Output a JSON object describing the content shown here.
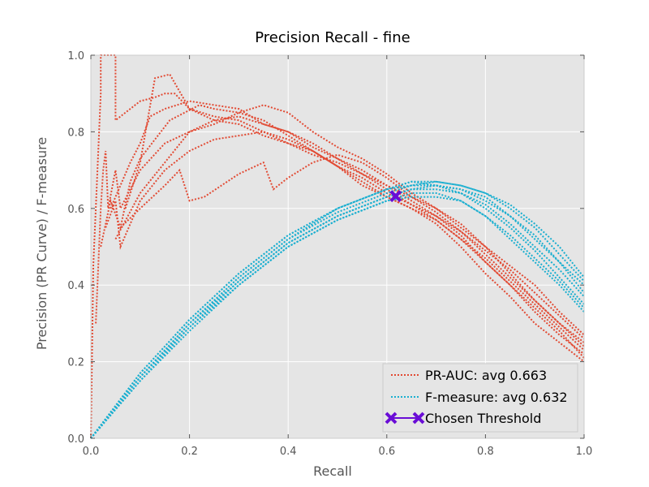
{
  "chart_data": {
    "type": "line",
    "title": "Precision Recall - fine",
    "xlabel": "Recall",
    "ylabel": "Precision (PR Curve) / F-measure",
    "xlim": [
      0.0,
      1.0
    ],
    "ylim": [
      0.0,
      1.0
    ],
    "xticks": [
      "0.0",
      "0.2",
      "0.4",
      "0.6",
      "0.8",
      "1.0"
    ],
    "yticks": [
      "0.0",
      "0.2",
      "0.4",
      "0.6",
      "0.8",
      "1.0"
    ],
    "grid": true,
    "legend_position": "lower-right",
    "colors": {
      "pr": "#e24a33",
      "f": "#1aafd0",
      "threshold": "#6a0dd6",
      "background": "#e5e5e5",
      "grid": "#ffffff"
    },
    "legend": [
      {
        "key": "pr",
        "label": "PR-AUC: avg 0.663",
        "style": "dotted"
      },
      {
        "key": "f",
        "label": "F-measure: avg 0.632",
        "style": "dotted"
      },
      {
        "key": "threshold",
        "label": "Chosen Threshold",
        "style": "marker-x"
      }
    ],
    "pr_curves": [
      [
        [
          0.0,
          0.0
        ],
        [
          0.005,
          0.45
        ],
        [
          0.01,
          0.6
        ],
        [
          0.02,
          0.9
        ],
        [
          0.02,
          1.0
        ],
        [
          0.05,
          1.0
        ],
        [
          0.05,
          0.83
        ],
        [
          0.08,
          0.86
        ],
        [
          0.1,
          0.88
        ],
        [
          0.13,
          0.89
        ],
        [
          0.15,
          0.9
        ],
        [
          0.17,
          0.9
        ],
        [
          0.2,
          0.86
        ],
        [
          0.25,
          0.84
        ],
        [
          0.3,
          0.83
        ],
        [
          0.35,
          0.8
        ],
        [
          0.4,
          0.77
        ],
        [
          0.45,
          0.74
        ],
        [
          0.5,
          0.72
        ],
        [
          0.55,
          0.69
        ],
        [
          0.6,
          0.66
        ],
        [
          0.65,
          0.63
        ],
        [
          0.7,
          0.59
        ],
        [
          0.75,
          0.54
        ],
        [
          0.8,
          0.48
        ],
        [
          0.85,
          0.42
        ],
        [
          0.9,
          0.36
        ],
        [
          0.95,
          0.3
        ],
        [
          1.0,
          0.25
        ]
      ],
      [
        [
          0.01,
          0.3
        ],
        [
          0.02,
          0.6
        ],
        [
          0.025,
          0.7
        ],
        [
          0.03,
          0.75
        ],
        [
          0.035,
          0.6
        ],
        [
          0.05,
          0.7
        ],
        [
          0.06,
          0.6
        ],
        [
          0.1,
          0.7
        ],
        [
          0.15,
          0.77
        ],
        [
          0.2,
          0.8
        ],
        [
          0.25,
          0.83
        ],
        [
          0.3,
          0.84
        ],
        [
          0.35,
          0.82
        ],
        [
          0.4,
          0.8
        ],
        [
          0.45,
          0.77
        ],
        [
          0.5,
          0.73
        ],
        [
          0.55,
          0.7
        ],
        [
          0.6,
          0.66
        ],
        [
          0.65,
          0.62
        ],
        [
          0.7,
          0.58
        ],
        [
          0.75,
          0.53
        ],
        [
          0.8,
          0.46
        ],
        [
          0.85,
          0.4
        ],
        [
          0.9,
          0.34
        ],
        [
          0.95,
          0.28
        ],
        [
          1.0,
          0.21
        ]
      ],
      [
        [
          0.02,
          0.5
        ],
        [
          0.04,
          0.62
        ],
        [
          0.06,
          0.55
        ],
        [
          0.08,
          0.67
        ],
        [
          0.1,
          0.73
        ],
        [
          0.13,
          0.78
        ],
        [
          0.16,
          0.83
        ],
        [
          0.19,
          0.85
        ],
        [
          0.22,
          0.87
        ],
        [
          0.25,
          0.86
        ],
        [
          0.3,
          0.85
        ],
        [
          0.35,
          0.83
        ],
        [
          0.4,
          0.79
        ],
        [
          0.45,
          0.75
        ],
        [
          0.5,
          0.71
        ],
        [
          0.55,
          0.68
        ],
        [
          0.6,
          0.64
        ],
        [
          0.65,
          0.61
        ],
        [
          0.7,
          0.57
        ],
        [
          0.75,
          0.52
        ],
        [
          0.8,
          0.46
        ],
        [
          0.85,
          0.4
        ],
        [
          0.9,
          0.33
        ],
        [
          0.95,
          0.27
        ],
        [
          1.0,
          0.22
        ]
      ],
      [
        [
          0.03,
          0.55
        ],
        [
          0.05,
          0.62
        ],
        [
          0.06,
          0.5
        ],
        [
          0.1,
          0.62
        ],
        [
          0.15,
          0.7
        ],
        [
          0.2,
          0.75
        ],
        [
          0.25,
          0.78
        ],
        [
          0.3,
          0.79
        ],
        [
          0.35,
          0.8
        ],
        [
          0.4,
          0.78
        ],
        [
          0.45,
          0.75
        ],
        [
          0.5,
          0.71
        ],
        [
          0.55,
          0.66
        ],
        [
          0.6,
          0.63
        ],
        [
          0.65,
          0.6
        ],
        [
          0.7,
          0.56
        ],
        [
          0.75,
          0.5
        ],
        [
          0.8,
          0.43
        ],
        [
          0.85,
          0.37
        ],
        [
          0.9,
          0.3
        ],
        [
          0.95,
          0.25
        ],
        [
          1.0,
          0.2
        ]
      ],
      [
        [
          0.04,
          0.6
        ],
        [
          0.08,
          0.72
        ],
        [
          0.1,
          0.77
        ],
        [
          0.12,
          0.84
        ],
        [
          0.15,
          0.86
        ],
        [
          0.2,
          0.88
        ],
        [
          0.25,
          0.87
        ],
        [
          0.3,
          0.86
        ],
        [
          0.35,
          0.82
        ],
        [
          0.4,
          0.8
        ],
        [
          0.45,
          0.76
        ],
        [
          0.5,
          0.73
        ],
        [
          0.55,
          0.69
        ],
        [
          0.6,
          0.65
        ],
        [
          0.65,
          0.61
        ],
        [
          0.7,
          0.58
        ],
        [
          0.75,
          0.54
        ],
        [
          0.8,
          0.49
        ],
        [
          0.85,
          0.44
        ],
        [
          0.9,
          0.38
        ],
        [
          0.95,
          0.32
        ],
        [
          1.0,
          0.26
        ]
      ],
      [
        [
          0.06,
          0.55
        ],
        [
          0.1,
          0.6
        ],
        [
          0.15,
          0.66
        ],
        [
          0.18,
          0.7
        ],
        [
          0.2,
          0.62
        ],
        [
          0.23,
          0.63
        ],
        [
          0.3,
          0.69
        ],
        [
          0.35,
          0.72
        ],
        [
          0.37,
          0.65
        ],
        [
          0.4,
          0.68
        ],
        [
          0.45,
          0.72
        ],
        [
          0.5,
          0.74
        ],
        [
          0.55,
          0.72
        ],
        [
          0.6,
          0.68
        ],
        [
          0.65,
          0.63
        ],
        [
          0.7,
          0.6
        ],
        [
          0.75,
          0.55
        ],
        [
          0.8,
          0.5
        ],
        [
          0.85,
          0.45
        ],
        [
          0.9,
          0.4
        ],
        [
          0.95,
          0.33
        ],
        [
          1.0,
          0.27
        ]
      ],
      [
        [
          0.05,
          0.52
        ],
        [
          0.1,
          0.64
        ],
        [
          0.15,
          0.72
        ],
        [
          0.2,
          0.8
        ],
        [
          0.25,
          0.82
        ],
        [
          0.3,
          0.85
        ],
        [
          0.35,
          0.87
        ],
        [
          0.4,
          0.85
        ],
        [
          0.45,
          0.8
        ],
        [
          0.5,
          0.76
        ],
        [
          0.55,
          0.73
        ],
        [
          0.6,
          0.69
        ],
        [
          0.65,
          0.64
        ],
        [
          0.7,
          0.6
        ],
        [
          0.75,
          0.56
        ],
        [
          0.8,
          0.5
        ],
        [
          0.85,
          0.43
        ],
        [
          0.9,
          0.36
        ],
        [
          0.95,
          0.3
        ],
        [
          1.0,
          0.24
        ]
      ],
      [
        [
          0.07,
          0.6
        ],
        [
          0.1,
          0.72
        ],
        [
          0.13,
          0.94
        ],
        [
          0.16,
          0.95
        ],
        [
          0.2,
          0.86
        ],
        [
          0.25,
          0.83
        ],
        [
          0.3,
          0.82
        ],
        [
          0.35,
          0.79
        ],
        [
          0.4,
          0.77
        ],
        [
          0.45,
          0.75
        ],
        [
          0.5,
          0.71
        ],
        [
          0.55,
          0.67
        ],
        [
          0.6,
          0.63
        ],
        [
          0.65,
          0.6
        ],
        [
          0.7,
          0.57
        ],
        [
          0.75,
          0.52
        ],
        [
          0.8,
          0.47
        ],
        [
          0.85,
          0.41
        ],
        [
          0.9,
          0.35
        ],
        [
          0.95,
          0.29
        ],
        [
          1.0,
          0.23
        ]
      ]
    ],
    "f_curves": [
      [
        [
          0.0,
          0.0
        ],
        [
          0.1,
          0.16
        ],
        [
          0.2,
          0.3
        ],
        [
          0.3,
          0.42
        ],
        [
          0.4,
          0.52
        ],
        [
          0.5,
          0.59
        ],
        [
          0.6,
          0.64
        ],
        [
          0.65,
          0.66
        ],
        [
          0.7,
          0.66
        ],
        [
          0.75,
          0.65
        ],
        [
          0.8,
          0.63
        ],
        [
          0.85,
          0.58
        ],
        [
          0.9,
          0.53
        ],
        [
          0.95,
          0.46
        ],
        [
          1.0,
          0.38
        ]
      ],
      [
        [
          0.0,
          0.0
        ],
        [
          0.1,
          0.15
        ],
        [
          0.2,
          0.29
        ],
        [
          0.3,
          0.41
        ],
        [
          0.4,
          0.51
        ],
        [
          0.5,
          0.58
        ],
        [
          0.6,
          0.63
        ],
        [
          0.65,
          0.65
        ],
        [
          0.7,
          0.66
        ],
        [
          0.75,
          0.64
        ],
        [
          0.8,
          0.6
        ],
        [
          0.85,
          0.55
        ],
        [
          0.9,
          0.49
        ],
        [
          0.95,
          0.42
        ],
        [
          1.0,
          0.35
        ]
      ],
      [
        [
          0.0,
          0.0
        ],
        [
          0.1,
          0.17
        ],
        [
          0.2,
          0.31
        ],
        [
          0.3,
          0.43
        ],
        [
          0.4,
          0.53
        ],
        [
          0.5,
          0.6
        ],
        [
          0.6,
          0.65
        ],
        [
          0.65,
          0.67
        ],
        [
          0.7,
          0.66
        ],
        [
          0.75,
          0.65
        ],
        [
          0.8,
          0.62
        ],
        [
          0.85,
          0.58
        ],
        [
          0.9,
          0.52
        ],
        [
          0.95,
          0.46
        ],
        [
          1.0,
          0.4
        ]
      ],
      [
        [
          0.0,
          0.0
        ],
        [
          0.1,
          0.16
        ],
        [
          0.2,
          0.29
        ],
        [
          0.3,
          0.4
        ],
        [
          0.4,
          0.5
        ],
        [
          0.5,
          0.57
        ],
        [
          0.6,
          0.62
        ],
        [
          0.65,
          0.64
        ],
        [
          0.7,
          0.64
        ],
        [
          0.75,
          0.62
        ],
        [
          0.8,
          0.58
        ],
        [
          0.85,
          0.52
        ],
        [
          0.9,
          0.46
        ],
        [
          0.95,
          0.4
        ],
        [
          1.0,
          0.33
        ]
      ],
      [
        [
          0.0,
          0.0
        ],
        [
          0.1,
          0.16
        ],
        [
          0.2,
          0.3
        ],
        [
          0.3,
          0.42
        ],
        [
          0.4,
          0.52
        ],
        [
          0.5,
          0.6
        ],
        [
          0.6,
          0.65
        ],
        [
          0.65,
          0.66
        ],
        [
          0.7,
          0.67
        ],
        [
          0.75,
          0.66
        ],
        [
          0.8,
          0.64
        ],
        [
          0.85,
          0.6
        ],
        [
          0.9,
          0.55
        ],
        [
          0.95,
          0.48
        ],
        [
          1.0,
          0.41
        ]
      ],
      [
        [
          0.0,
          0.0
        ],
        [
          0.1,
          0.15
        ],
        [
          0.2,
          0.28
        ],
        [
          0.3,
          0.4
        ],
        [
          0.4,
          0.5
        ],
        [
          0.5,
          0.57
        ],
        [
          0.6,
          0.62
        ],
        [
          0.65,
          0.63
        ],
        [
          0.7,
          0.63
        ],
        [
          0.75,
          0.62
        ],
        [
          0.8,
          0.58
        ],
        [
          0.85,
          0.53
        ],
        [
          0.9,
          0.47
        ],
        [
          0.95,
          0.41
        ],
        [
          1.0,
          0.34
        ]
      ],
      [
        [
          0.0,
          0.0
        ],
        [
          0.1,
          0.17
        ],
        [
          0.2,
          0.31
        ],
        [
          0.3,
          0.43
        ],
        [
          0.4,
          0.53
        ],
        [
          0.5,
          0.6
        ],
        [
          0.6,
          0.65
        ],
        [
          0.65,
          0.67
        ],
        [
          0.7,
          0.67
        ],
        [
          0.75,
          0.66
        ],
        [
          0.8,
          0.64
        ],
        [
          0.85,
          0.61
        ],
        [
          0.9,
          0.56
        ],
        [
          0.95,
          0.5
        ],
        [
          1.0,
          0.42
        ]
      ],
      [
        [
          0.0,
          0.0
        ],
        [
          0.1,
          0.16
        ],
        [
          0.2,
          0.3
        ],
        [
          0.3,
          0.41
        ],
        [
          0.4,
          0.51
        ],
        [
          0.5,
          0.58
        ],
        [
          0.6,
          0.63
        ],
        [
          0.65,
          0.65
        ],
        [
          0.7,
          0.65
        ],
        [
          0.75,
          0.64
        ],
        [
          0.8,
          0.61
        ],
        [
          0.85,
          0.56
        ],
        [
          0.9,
          0.5
        ],
        [
          0.95,
          0.44
        ],
        [
          1.0,
          0.37
        ]
      ]
    ],
    "threshold_point": [
      0.618,
      0.632
    ]
  }
}
